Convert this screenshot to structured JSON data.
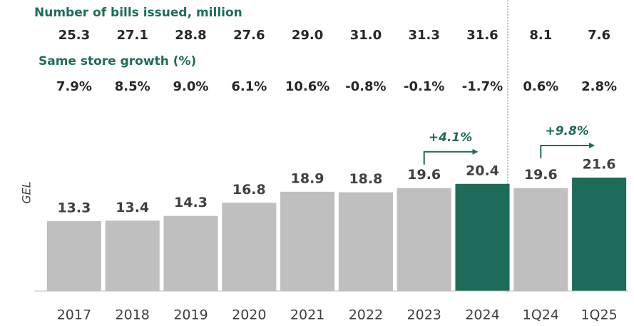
{
  "chart_data": {
    "type": "bar",
    "bills": {
      "title": "Number of bills issued, million",
      "values": [
        25.3,
        27.1,
        28.8,
        27.6,
        29.0,
        31.0,
        31.3,
        31.6,
        8.1,
        7.6
      ],
      "value_labels": [
        "25.3",
        "27.1",
        "28.8",
        "27.6",
        "29.0",
        "31.0",
        "31.3",
        "31.6",
        "8.1",
        "7.6"
      ]
    },
    "growth": {
      "title": "Same store growth (%)",
      "values": [
        7.9,
        8.5,
        9.0,
        6.1,
        10.6,
        -0.8,
        -0.1,
        -1.7,
        0.6,
        2.8
      ],
      "value_labels": [
        "7.9%",
        "8.5%",
        "9.0%",
        "6.1%",
        "10.6%",
        "-0.8%",
        "-0.1%",
        "-1.7%",
        "0.6%",
        "2.8%"
      ]
    },
    "ylabel": "GEL",
    "categories": [
      "2017",
      "2018",
      "2019",
      "2020",
      "2021",
      "2022",
      "2023",
      "2024",
      "1Q24",
      "1Q25"
    ],
    "values": [
      13.3,
      13.4,
      14.3,
      16.8,
      18.9,
      18.8,
      19.6,
      20.4,
      19.6,
      21.6
    ],
    "colors": [
      "#bfbfbf",
      "#bfbfbf",
      "#bfbfbf",
      "#bfbfbf",
      "#bfbfbf",
      "#bfbfbf",
      "#bfbfbf",
      "#1f6b5a",
      "#bfbfbf",
      "#1f6b5a"
    ],
    "ylim": [
      0,
      33
    ],
    "annotations": [
      {
        "text": "+4.1%",
        "from": 6,
        "to": 7
      },
      {
        "text": "+9.8%",
        "from": 8,
        "to": 9
      }
    ]
  }
}
